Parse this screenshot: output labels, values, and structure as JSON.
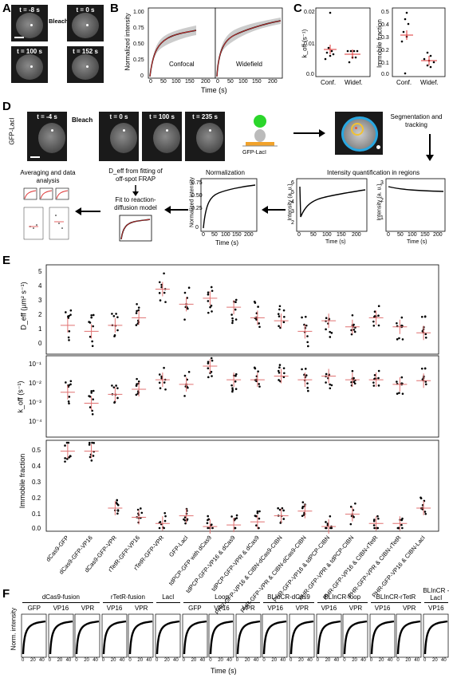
{
  "panels": {
    "A": "A",
    "B": "B",
    "C": "C",
    "D": "D",
    "E": "E",
    "F": "F"
  },
  "panelA": {
    "times": [
      "t = -8 s",
      "t = 0 s",
      "t = 100 s",
      "t = 152 s"
    ],
    "bleach": "Bleach"
  },
  "panelB": {
    "ylabel": "Normalized intensity",
    "xlabel": "Time (s)",
    "left_title": "Confocal",
    "right_title": "Widefield",
    "yticks": [
      "0",
      "0.25",
      "0.50",
      "0.75",
      "1.00"
    ],
    "xticks_left": [
      "0",
      "50",
      "100",
      "150",
      "200"
    ],
    "xticks_right": [
      "0",
      "50",
      "100",
      "150",
      "200"
    ]
  },
  "panelC": {
    "koff_ylabel": "k_off (s⁻¹)",
    "koff_yticks": [
      "0.0",
      "0.01",
      "0.02"
    ],
    "imm_ylabel": "Immobile fraction",
    "imm_yticks": [
      "0.0",
      "0.1",
      "0.2",
      "0.3",
      "0.4",
      "0.5"
    ],
    "xcats": [
      "Conf.",
      "Widef."
    ]
  },
  "panelD": {
    "cell_label": "GFP-LacI",
    "times": [
      "t = -4 s",
      "t = 0 s",
      "t = 100 s",
      "t = 235 s"
    ],
    "bleach": "Bleach",
    "construct": "GFP-LacI",
    "seg": "Segmentation and tracking",
    "quant": "Intensity quantification in regions",
    "norm": "Normalization",
    "norm_ylabel": "Normalized intensity",
    "intensity_ylabel": "Intensity (a. u.)",
    "time_label": "Time (s)",
    "deff_text": "D_eff from fitting of off-spot FRAP",
    "fit_text": "Fit to reaction-diffusion model",
    "avg_text": "Averaging and data analysis",
    "norm_xticks": [
      "0",
      "50",
      "100",
      "150",
      "200"
    ],
    "norm_yticks": [
      "0",
      "0.25",
      "0.50",
      "0.75"
    ],
    "int_xticks": [
      "0",
      "50",
      "100",
      "150",
      "200"
    ],
    "int_yticks_a": [
      "2",
      "3",
      "4",
      "5",
      "6"
    ],
    "int_yticks_b": [
      "1",
      "2",
      "3"
    ]
  },
  "panelE": {
    "deff_ylabel": "D_eff (µm² s⁻¹)",
    "deff_yticks": [
      "0",
      "1",
      "2",
      "3",
      "4",
      "5"
    ],
    "koff_ylabel": "k_off (s⁻¹)",
    "koff_yticks": [
      "10⁻⁴",
      "10⁻³",
      "10⁻²",
      "10⁻¹"
    ],
    "imm_ylabel": "Immobile fraction",
    "imm_yticks": [
      "0.0",
      "0.1",
      "0.2",
      "0.3",
      "0.4",
      "0.5"
    ],
    "categories": [
      "dCas9-GFP",
      "dCas9-GFP-VP16",
      "dCas9-GFP-VPR",
      "rTetR-GFP-VP16",
      "rTetR-GFP-VPR",
      "GFP-LacI",
      "tdPCP-GFP with dCas9",
      "tdPCP-GFP-VP16 & dCas9",
      "tdPCP-GFP-VPR & dCas9",
      "PHR-GFP-VP16 & CIBN-dCas9-CIBN",
      "PHR-GFP-VPR & CIBN-dCas9-CIBN",
      "PHR-GFP-VP16 & tdPCP-CIBN",
      "PHR-GFP-VPR & tdPCP-CIBN",
      "PHR-GFP-VP16 & CIBN-rTetR",
      "PHR-GFP-VPR & CIBN-rTetR",
      "PHR-GFP-VP16 & CIBN-LacI"
    ]
  },
  "panelF": {
    "ylabel": "Norm. intensity",
    "xlabel": "Time (s)",
    "groups": [
      "dCas9-fusion",
      "rTetR-fusion",
      "LacI",
      "Loop",
      "BLInCR-dCas9",
      "BLInCR-loop",
      "BLInCR-rTetR",
      "BLInCR -LacI"
    ],
    "subs": [
      "GFP",
      "VP16",
      "VPR",
      "VP16",
      "VPR",
      "",
      "GFP",
      "VP16",
      "VPR",
      "VP16",
      "VPR",
      "VP16",
      "VPR",
      "VP16",
      "VPR",
      "VP16"
    ],
    "xticks": [
      "0",
      "20",
      "40"
    ]
  },
  "chart_data": [
    {
      "type": "scatter",
      "panel": "E-Deff",
      "categories": [
        "dCas9-GFP",
        "dCas9-GFP-VP16",
        "dCas9-GFP-VPR",
        "rTetR-GFP-VP16",
        "rTetR-GFP-VPR",
        "GFP-LacI",
        "tdPCP-GFP with dCas9",
        "tdPCP-GFP-VP16 & dCas9",
        "tdPCP-GFP-VPR & dCas9",
        "PHR-GFP-VP16 & CIBN-dCas9-CIBN",
        "PHR-GFP-VPR & CIBN-dCas9-CIBN",
        "PHR-GFP-VP16 & tdPCP-CIBN",
        "PHR-GFP-VPR & tdPCP-CIBN",
        "PHR-GFP-VP16 & CIBN-rTetR",
        "PHR-GFP-VPR & CIBN-rTetR",
        "PHR-GFP-VP16 & CIBN-LacI"
      ],
      "means": [
        1.7,
        1.3,
        1.7,
        2.2,
        4.1,
        3.1,
        3.5,
        2.9,
        2.2,
        2.0,
        1.3,
        2.0,
        1.6,
        2.2,
        1.6,
        1.2
      ],
      "ylim": [
        0,
        5.5
      ]
    },
    {
      "type": "scatter",
      "panel": "E-koff",
      "yscale": "log",
      "means": [
        0.005,
        0.0015,
        0.004,
        0.007,
        0.02,
        0.012,
        0.09,
        0.02,
        0.02,
        0.03,
        0.02,
        0.03,
        0.02,
        0.02,
        0.012,
        0.018
      ],
      "ylim": [
        5e-05,
        0.2
      ]
    },
    {
      "type": "scatter",
      "panel": "E-immobile",
      "means": [
        0.5,
        0.5,
        0.13,
        0.07,
        0.03,
        0.08,
        0.01,
        0.02,
        0.04,
        0.08,
        0.11,
        0.01,
        0.09,
        0.03,
        0.03,
        0.13
      ],
      "ylim": [
        0,
        0.55
      ]
    }
  ]
}
